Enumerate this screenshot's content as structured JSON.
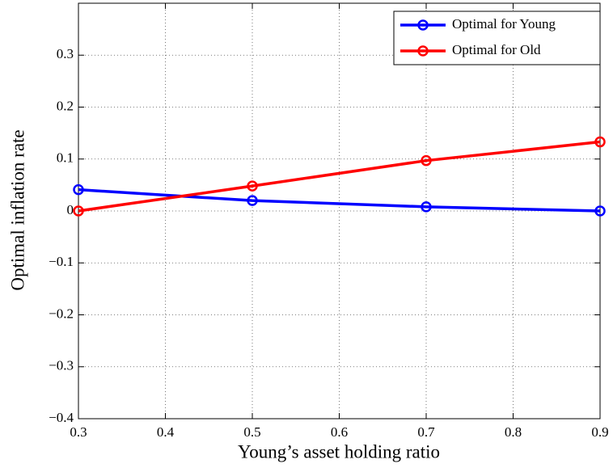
{
  "chart_data": {
    "type": "line",
    "xlabel": "Young’s asset holding ratio",
    "ylabel": "Optimal inflation rate",
    "x": [
      0.3,
      0.5,
      0.7,
      0.9
    ],
    "series": [
      {
        "name": "Optimal for Young",
        "color": "#0000ff",
        "values": [
          0.041,
          0.02,
          0.008,
          0.0
        ]
      },
      {
        "name": "Optimal for Old",
        "color": "#ff0000",
        "values": [
          0.0,
          0.048,
          0.097,
          0.133
        ]
      }
    ],
    "xlim": [
      0.3,
      0.9
    ],
    "ylim": [
      -0.4,
      0.4
    ],
    "xticks": [
      0.3,
      0.4,
      0.5,
      0.6,
      0.7,
      0.8,
      0.9
    ],
    "yticks": [
      {
        "value": -0.4,
        "label": "−0.4"
      },
      {
        "value": -0.3,
        "label": "−0.3"
      },
      {
        "value": -0.2,
        "label": "−0.2"
      },
      {
        "value": -0.1,
        "label": "−0.1"
      },
      0,
      0.1,
      0.2,
      0.3
    ],
    "grid": true,
    "legend": "top-right"
  }
}
